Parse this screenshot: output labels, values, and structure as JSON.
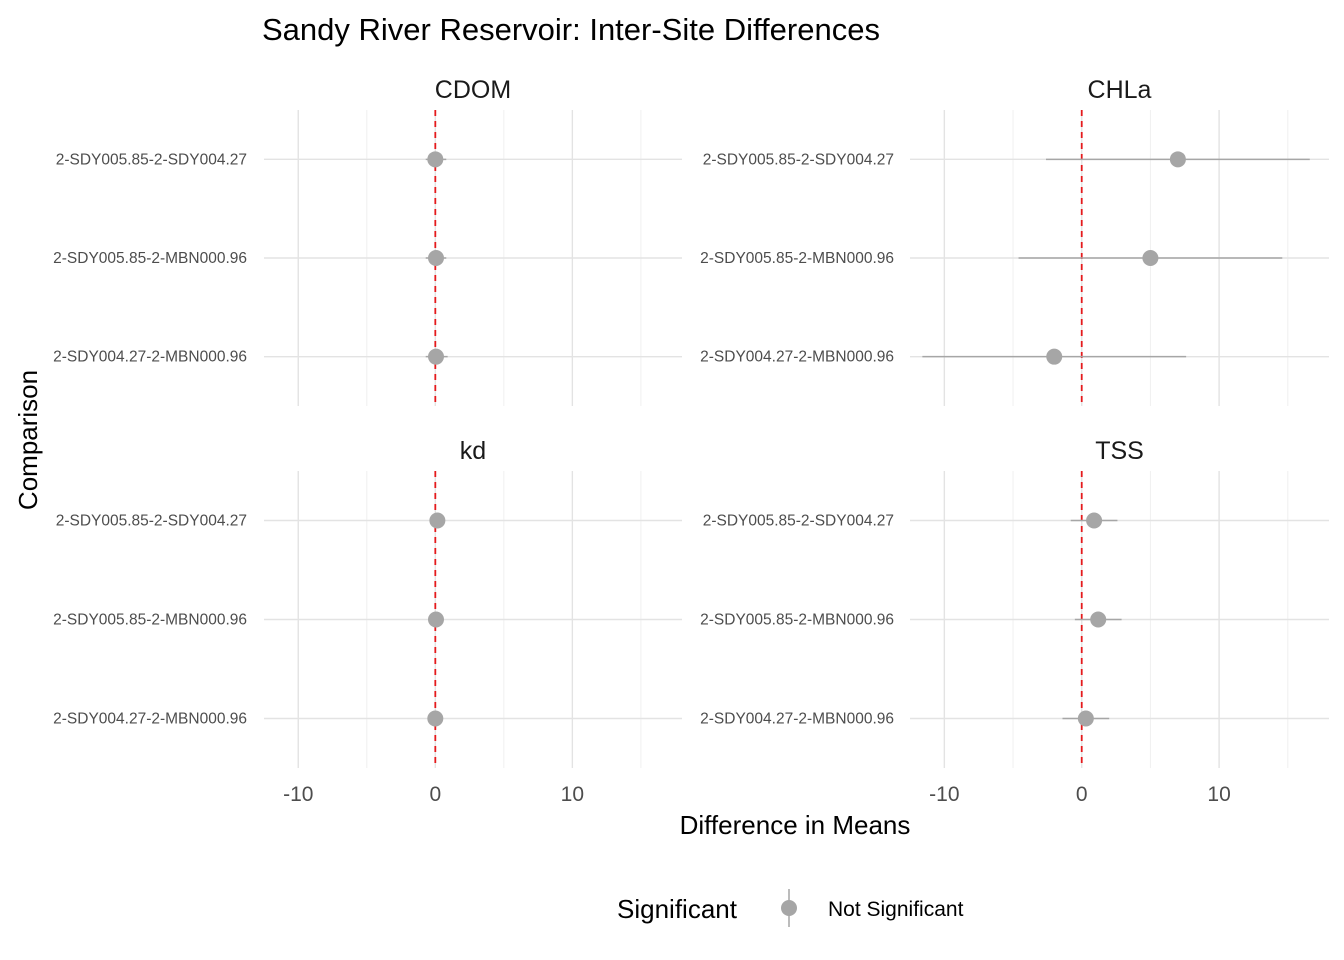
{
  "chart_data": {
    "type": "scatter",
    "subtype": "faceted point-range (coefficient) plot",
    "title": "Sandy River Reservoir: Inter-Site Differences",
    "xlabel": "Difference in Means",
    "ylabel": "Comparison",
    "xlim": [
      -12.5,
      18
    ],
    "x_ticks": [
      -10,
      0,
      10
    ],
    "reference_line": {
      "x": 0,
      "color": "#e41a1c",
      "style": "dashed"
    },
    "grid": true,
    "legend": {
      "title": "Significant",
      "position": "bottom",
      "entries": [
        {
          "label": "Not Significant",
          "color": "#a6a6a6"
        }
      ]
    },
    "comparisons": [
      "2-SDY005.85-2-SDY004.27",
      "2-SDY005.85-2-MBN000.96",
      "2-SDY004.27-2-MBN000.96"
    ],
    "panels": [
      {
        "name": "CDOM",
        "estimates": [
          0.0,
          0.05,
          0.05
        ],
        "lower": [
          -0.7,
          -0.7,
          -0.7
        ],
        "upper": [
          0.8,
          0.8,
          0.9
        ]
      },
      {
        "name": "CHLa",
        "estimates": [
          7.0,
          5.0,
          -2.0
        ],
        "lower": [
          -2.6,
          -4.6,
          -11.6
        ],
        "upper": [
          16.6,
          14.6,
          7.6
        ]
      },
      {
        "name": "kd",
        "estimates": [
          0.15,
          0.05,
          0.0
        ],
        "lower": [
          0.1,
          0.0,
          -0.05
        ],
        "upper": [
          0.2,
          0.1,
          0.05
        ]
      },
      {
        "name": "TSS",
        "estimates": [
          0.9,
          1.2,
          0.3
        ],
        "lower": [
          -0.8,
          -0.5,
          -1.4
        ],
        "upper": [
          2.6,
          2.9,
          2.0
        ]
      }
    ]
  }
}
